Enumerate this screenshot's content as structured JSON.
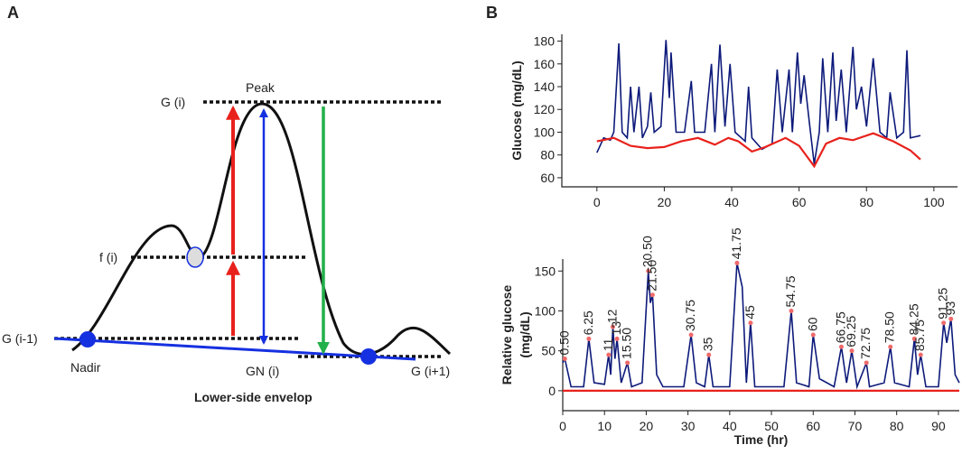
{
  "panel_a": {
    "letter": "A",
    "labels": {
      "g_i": "G (i)",
      "peak": "Peak",
      "f_i": "f (i)",
      "g_prev": "G (i-1)",
      "nadir": "Nadir",
      "gn_i": "GN (i)",
      "g_next": "G (i+1)",
      "caption": "Lower-side envelop"
    }
  },
  "panel_b": {
    "letter": "B"
  },
  "chart_data": [
    {
      "type": "line",
      "ylabel": "Glucose (mg/dL)",
      "xlim": [
        -10.4,
        107
      ],
      "ylim": [
        52,
        186
      ],
      "xticks": [
        0,
        20,
        40,
        60,
        80,
        100
      ],
      "yticks": [
        60,
        80,
        100,
        120,
        140,
        160,
        180
      ],
      "series": [
        {
          "color": "#0d1a7a",
          "x": [
            0,
            2,
            4,
            5,
            6.5,
            7.5,
            9,
            10,
            11,
            12.5,
            13.5,
            15,
            16,
            17,
            19,
            20.5,
            21.5,
            22,
            23.5,
            26,
            28,
            29,
            32,
            34,
            35,
            36.5,
            38,
            39.5,
            41,
            44,
            45,
            46,
            49,
            52,
            53.5,
            55,
            57,
            58,
            59.5,
            60.5,
            61.5,
            63,
            64.5,
            66,
            67,
            68.5,
            70,
            71,
            72.5,
            74,
            76,
            77,
            78.5,
            80,
            82,
            84,
            86,
            87,
            89,
            91,
            92,
            93,
            96
          ],
          "values": [
            82,
            95,
            93,
            100,
            178,
            100,
            95,
            140,
            100,
            140,
            95,
            105,
            135,
            100,
            105,
            181,
            130,
            170,
            100,
            100,
            145,
            100,
            100,
            160,
            100,
            177,
            105,
            160,
            100,
            92,
            140,
            95,
            85,
            90,
            155,
            100,
            155,
            100,
            170,
            125,
            150,
            110,
            72,
            100,
            165,
            100,
            170,
            110,
            155,
            100,
            175,
            120,
            140,
            105,
            165,
            100,
            95,
            135,
            95,
            100,
            172,
            95,
            97
          ]
        },
        {
          "color": "#e8211c",
          "x": [
            0,
            5,
            10,
            15,
            20,
            25,
            30,
            35,
            39,
            42,
            46,
            50,
            56,
            60,
            64.5,
            68,
            72,
            76,
            82,
            88,
            93,
            96
          ],
          "values": [
            92,
            95,
            88,
            86,
            87,
            92,
            95,
            89,
            95,
            92,
            83,
            87,
            95,
            88,
            70,
            90,
            95,
            93,
            99,
            92,
            84,
            76
          ]
        }
      ]
    },
    {
      "type": "line",
      "ylabel": [
        "Relative glucose",
        "(mg/dL)"
      ],
      "xlabel": "Time (hr)",
      "xlim": [
        0,
        95
      ],
      "ylim": [
        -25,
        165
      ],
      "xticks": [
        0,
        10,
        20,
        30,
        40,
        50,
        60,
        70,
        80,
        90
      ],
      "yticks": [
        0,
        50,
        100,
        150
      ],
      "series": [
        {
          "color": "#0d1a7a",
          "x": [
            0,
            0.5,
            2,
            5,
            6.25,
            7.5,
            10,
            11,
            11.5,
            12,
            12.5,
            13,
            14,
            15.5,
            16.5,
            19,
            20.5,
            21,
            21.5,
            22.5,
            24,
            29,
            30.75,
            32,
            34,
            35,
            36,
            40,
            41.75,
            43,
            44,
            45,
            46,
            53,
            54.75,
            56,
            59,
            60,
            61.5,
            65,
            66.75,
            68,
            69.25,
            70.5,
            72.75,
            73.5,
            77,
            78.5,
            79.5,
            83,
            84.25,
            85,
            85.75,
            87,
            90,
            91.25,
            92,
            93,
            94,
            95
          ],
          "values": [
            35,
            40,
            5,
            5,
            65,
            10,
            8,
            45,
            20,
            80,
            40,
            65,
            10,
            35,
            5,
            10,
            150,
            110,
            120,
            20,
            5,
            5,
            70,
            10,
            5,
            45,
            5,
            5,
            160,
            130,
            10,
            85,
            5,
            5,
            100,
            10,
            5,
            70,
            15,
            5,
            55,
            10,
            50,
            5,
            35,
            5,
            10,
            55,
            10,
            5,
            65,
            20,
            45,
            5,
            5,
            85,
            60,
            90,
            20,
            10
          ]
        },
        {
          "color": "#e8211c",
          "x": [
            0,
            95
          ],
          "values": [
            0,
            0
          ]
        }
      ],
      "peaks": {
        "color": "#f06a6a",
        "x": [
          0.5,
          6.25,
          11,
          12,
          13,
          15.5,
          20.5,
          21.5,
          30.75,
          35,
          41.75,
          45,
          54.75,
          60,
          66.75,
          69.25,
          72.75,
          78.5,
          84.25,
          85.75,
          91.25,
          93
        ],
        "labels": [
          "0.50",
          "6.25",
          "11",
          "12",
          "13",
          "15.50",
          "20.50",
          "21.50",
          "30.75",
          "35",
          "41.75",
          "45",
          "54.75",
          "60",
          "66.75",
          "69.25",
          "72.75",
          "78.50",
          "84.25",
          "85.75",
          "91.25",
          "93"
        ],
        "values": [
          40,
          65,
          45,
          80,
          65,
          35,
          150,
          120,
          70,
          45,
          160,
          85,
          100,
          70,
          55,
          50,
          35,
          55,
          65,
          45,
          85,
          90
        ]
      }
    }
  ]
}
